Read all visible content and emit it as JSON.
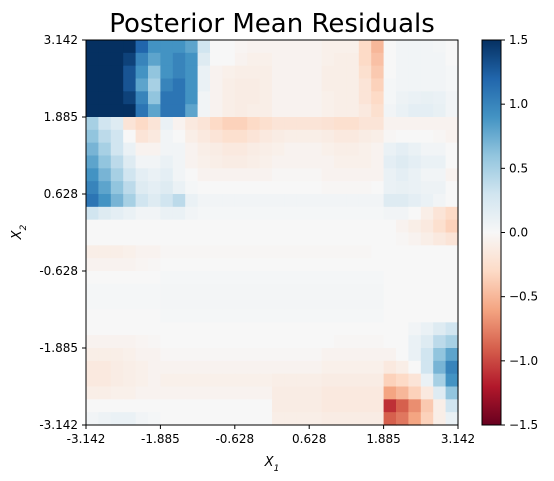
{
  "chart_data": {
    "type": "heatmap",
    "title": "Posterior Mean Residuals",
    "xlabel": "X",
    "xlabel_sub": "1",
    "ylabel": "X",
    "ylabel_sub": "2",
    "xlim": [
      -3.142,
      3.142
    ],
    "ylim": [
      -3.142,
      3.142
    ],
    "x_ticks": [
      "-3.142",
      "-1.885",
      "-0.628",
      "0.628",
      "1.885",
      "3.142"
    ],
    "y_ticks": [
      "-3.142",
      "-1.885",
      "-0.628",
      "0.628",
      "1.885",
      "3.142"
    ],
    "colormap": "RdBu",
    "vmin": -1.5,
    "vmax": 1.5,
    "colorbar_ticks": [
      "1.5",
      "1.0",
      "0.5",
      "0.0",
      "−0.5",
      "−1.0",
      "−1.5"
    ],
    "grid_size": 30,
    "rows_top_to_bottom": [
      [
        1.6,
        1.6,
        1.5,
        1.5,
        1.2,
        0.9,
        0.9,
        0.9,
        0.8,
        0.3,
        0.0,
        0.0,
        -0.03,
        -0.05,
        -0.05,
        -0.05,
        -0.05,
        -0.05,
        -0.05,
        -0.08,
        -0.08,
        -0.08,
        -0.3,
        -0.5,
        0.0,
        0.05,
        0.05,
        0.05,
        0.03,
        0.0
      ],
      [
        1.6,
        1.6,
        1.5,
        1.4,
        1.0,
        0.8,
        0.9,
        1.0,
        0.9,
        0.2,
        0.0,
        0.0,
        -0.05,
        -0.08,
        -0.08,
        -0.05,
        -0.05,
        -0.05,
        -0.05,
        -0.08,
        -0.1,
        -0.1,
        -0.3,
        -0.45,
        0.0,
        0.05,
        0.05,
        0.05,
        0.05,
        0.0
      ],
      [
        1.6,
        1.6,
        1.5,
        1.3,
        0.9,
        0.6,
        0.9,
        1.0,
        0.9,
        0.1,
        -0.05,
        -0.08,
        -0.1,
        -0.1,
        -0.1,
        -0.05,
        -0.05,
        -0.05,
        -0.05,
        -0.1,
        -0.1,
        -0.1,
        -0.25,
        -0.4,
        0.0,
        0.05,
        0.05,
        0.05,
        0.05,
        0.02
      ],
      [
        1.6,
        1.6,
        1.5,
        1.3,
        0.8,
        0.5,
        1.0,
        1.1,
        0.9,
        0.1,
        -0.05,
        -0.1,
        -0.12,
        -0.12,
        -0.1,
        -0.05,
        -0.05,
        -0.05,
        -0.05,
        -0.1,
        -0.1,
        -0.1,
        -0.2,
        -0.35,
        0.02,
        0.05,
        0.05,
        0.05,
        0.05,
        0.02
      ],
      [
        1.6,
        1.6,
        1.5,
        1.4,
        1.0,
        0.6,
        1.1,
        1.1,
        0.9,
        0.05,
        -0.05,
        -0.1,
        -0.12,
        -0.12,
        -0.1,
        -0.05,
        -0.05,
        -0.05,
        -0.05,
        -0.08,
        -0.1,
        -0.1,
        -0.2,
        -0.3,
        0.02,
        0.08,
        0.1,
        0.12,
        0.1,
        0.05
      ],
      [
        1.6,
        1.6,
        1.5,
        1.5,
        1.1,
        0.8,
        1.1,
        1.1,
        0.8,
        0.05,
        -0.05,
        -0.1,
        -0.12,
        -0.1,
        -0.1,
        -0.05,
        -0.05,
        -0.05,
        -0.05,
        -0.08,
        -0.1,
        -0.1,
        -0.15,
        -0.25,
        0.05,
        0.1,
        0.15,
        0.15,
        0.12,
        0.05
      ],
      [
        0.5,
        0.3,
        0.2,
        -0.2,
        -0.3,
        -0.2,
        0.1,
        -0.05,
        -0.15,
        -0.2,
        -0.3,
        -0.35,
        -0.35,
        -0.3,
        -0.25,
        -0.2,
        -0.2,
        -0.2,
        -0.2,
        -0.22,
        -0.25,
        -0.25,
        -0.2,
        -0.2,
        -0.05,
        -0.05,
        -0.05,
        -0.05,
        -0.05,
        -0.05
      ],
      [
        0.6,
        0.4,
        0.3,
        0.0,
        -0.2,
        -0.15,
        0.05,
        0.0,
        -0.1,
        -0.15,
        -0.2,
        -0.25,
        -0.25,
        -0.2,
        -0.15,
        -0.12,
        -0.1,
        -0.1,
        -0.1,
        -0.12,
        -0.15,
        -0.15,
        -0.12,
        -0.1,
        -0.02,
        0.0,
        0.0,
        0.0,
        -0.02,
        -0.05
      ],
      [
        0.7,
        0.5,
        0.3,
        0.1,
        -0.05,
        -0.05,
        0.05,
        0.05,
        -0.05,
        -0.1,
        -0.12,
        -0.15,
        -0.15,
        -0.12,
        -0.1,
        -0.08,
        -0.05,
        -0.05,
        -0.05,
        -0.08,
        -0.1,
        -0.1,
        -0.08,
        -0.05,
        0.1,
        0.15,
        0.1,
        0.05,
        0.05,
        0.0
      ],
      [
        0.8,
        0.6,
        0.4,
        0.2,
        0.05,
        0.05,
        0.1,
        0.05,
        -0.05,
        -0.08,
        -0.1,
        -0.12,
        -0.12,
        -0.1,
        -0.08,
        -0.05,
        -0.05,
        -0.05,
        -0.05,
        -0.05,
        -0.08,
        -0.08,
        -0.08,
        -0.05,
        0.15,
        0.2,
        0.15,
        0.1,
        0.1,
        0.0
      ],
      [
        0.9,
        0.7,
        0.5,
        0.3,
        0.15,
        0.1,
        0.15,
        0.05,
        0.0,
        -0.05,
        -0.05,
        -0.05,
        -0.05,
        -0.05,
        -0.05,
        -0.02,
        -0.02,
        -0.02,
        -0.02,
        -0.05,
        -0.05,
        -0.05,
        -0.05,
        -0.05,
        0.1,
        0.15,
        0.1,
        0.05,
        0.05,
        -0.05
      ],
      [
        1.0,
        0.8,
        0.6,
        0.4,
        0.2,
        0.15,
        0.2,
        0.1,
        0.02,
        0.0,
        0.0,
        0.0,
        0.0,
        0.0,
        0.0,
        0.0,
        0.0,
        0.0,
        0.0,
        -0.02,
        -0.02,
        -0.02,
        -0.02,
        0.0,
        0.1,
        0.12,
        0.1,
        0.08,
        0.08,
        0.0
      ],
      [
        1.1,
        0.9,
        0.7,
        0.5,
        0.3,
        0.2,
        0.3,
        0.4,
        0.1,
        0.05,
        0.05,
        0.05,
        0.05,
        0.05,
        0.05,
        0.05,
        0.05,
        0.05,
        0.05,
        0.05,
        0.05,
        0.05,
        0.05,
        0.05,
        0.2,
        0.2,
        0.15,
        0.1,
        0.05,
        0.0
      ],
      [
        0.3,
        0.2,
        0.15,
        0.1,
        0.05,
        0.05,
        0.1,
        0.1,
        0.05,
        0.02,
        0.02,
        0.02,
        0.02,
        0.02,
        0.02,
        0.02,
        0.02,
        0.02,
        0.02,
        0.02,
        0.02,
        0.02,
        0.02,
        0.02,
        0.05,
        0.05,
        0.0,
        -0.1,
        -0.2,
        -0.3
      ],
      [
        0.0,
        0.0,
        0.0,
        0.0,
        0.0,
        0.0,
        0.0,
        0.0,
        0.0,
        0.0,
        0.0,
        0.0,
        0.0,
        0.0,
        0.0,
        0.0,
        0.0,
        0.0,
        0.0,
        0.0,
        0.0,
        0.0,
        0.0,
        0.0,
        0.0,
        -0.05,
        -0.1,
        -0.15,
        -0.25,
        -0.35
      ],
      [
        0.0,
        0.0,
        0.0,
        0.0,
        0.0,
        0.0,
        0.0,
        0.0,
        0.0,
        0.0,
        0.0,
        0.0,
        0.0,
        0.0,
        0.0,
        0.0,
        0.0,
        0.0,
        0.0,
        0.0,
        0.0,
        0.0,
        0.0,
        0.0,
        0.0,
        -0.02,
        -0.05,
        -0.1,
        -0.15,
        -0.2
      ],
      [
        -0.1,
        -0.1,
        -0.1,
        -0.08,
        -0.05,
        -0.05,
        -0.02,
        -0.02,
        -0.02,
        -0.02,
        -0.02,
        -0.02,
        -0.02,
        -0.02,
        -0.02,
        -0.02,
        -0.02,
        -0.02,
        -0.02,
        -0.02,
        -0.02,
        -0.02,
        -0.02,
        0.0,
        0.0,
        0.0,
        0.0,
        0.0,
        0.0,
        0.0
      ],
      [
        -0.05,
        -0.05,
        -0.05,
        -0.05,
        -0.03,
        -0.02,
        0.0,
        0.0,
        0.0,
        0.0,
        0.0,
        0.0,
        0.0,
        0.0,
        0.0,
        0.0,
        0.0,
        0.0,
        0.0,
        0.0,
        0.0,
        0.0,
        0.0,
        0.0,
        0.0,
        0.0,
        0.0,
        0.0,
        0.0,
        0.0
      ],
      [
        0.0,
        0.0,
        0.0,
        0.0,
        0.0,
        0.0,
        0.02,
        0.02,
        0.02,
        0.02,
        0.02,
        0.02,
        0.02,
        0.02,
        0.02,
        0.02,
        0.02,
        0.02,
        0.02,
        0.02,
        0.02,
        0.02,
        0.02,
        0.02,
        0.0,
        0.0,
        0.0,
        0.0,
        0.0,
        0.0
      ],
      [
        0.02,
        0.02,
        0.02,
        0.02,
        0.02,
        0.02,
        0.03,
        0.03,
        0.03,
        0.03,
        0.03,
        0.03,
        0.03,
        0.03,
        0.03,
        0.03,
        0.03,
        0.03,
        0.03,
        0.03,
        0.03,
        0.03,
        0.03,
        0.03,
        0.0,
        0.0,
        0.0,
        0.0,
        0.0,
        0.0
      ],
      [
        0.02,
        0.02,
        0.02,
        0.02,
        0.02,
        0.02,
        0.03,
        0.03,
        0.03,
        0.03,
        0.03,
        0.03,
        0.03,
        0.03,
        0.03,
        0.03,
        0.03,
        0.03,
        0.03,
        0.03,
        0.03,
        0.03,
        0.03,
        0.03,
        0.0,
        0.0,
        0.0,
        0.0,
        0.0,
        0.0
      ],
      [
        0.0,
        0.0,
        0.0,
        0.0,
        0.0,
        0.0,
        0.02,
        0.02,
        0.02,
        0.02,
        0.02,
        0.02,
        0.02,
        0.02,
        0.02,
        0.02,
        0.02,
        0.02,
        0.02,
        0.02,
        0.02,
        0.02,
        0.02,
        0.02,
        0.0,
        0.0,
        0.0,
        0.0,
        0.0,
        0.0
      ],
      [
        0.0,
        0.0,
        0.0,
        0.0,
        0.0,
        0.0,
        0.0,
        0.0,
        0.0,
        0.0,
        0.0,
        0.0,
        0.0,
        0.0,
        0.0,
        0.0,
        0.0,
        0.0,
        0.0,
        0.0,
        0.0,
        0.0,
        0.0,
        0.0,
        0.0,
        0.0,
        0.05,
        0.1,
        0.2,
        0.3
      ],
      [
        -0.05,
        -0.05,
        -0.05,
        -0.05,
        -0.03,
        -0.02,
        0.0,
        0.0,
        0.0,
        0.0,
        0.0,
        0.0,
        0.0,
        0.0,
        0.0,
        0.0,
        0.0,
        0.0,
        0.0,
        0.0,
        -0.02,
        -0.02,
        -0.02,
        -0.02,
        0.0,
        0.0,
        0.1,
        0.2,
        0.4,
        0.5
      ],
      [
        -0.1,
        -0.1,
        -0.1,
        -0.08,
        -0.05,
        -0.05,
        -0.02,
        -0.02,
        -0.02,
        -0.02,
        -0.02,
        -0.02,
        -0.02,
        -0.02,
        -0.02,
        -0.02,
        -0.02,
        -0.02,
        -0.02,
        -0.05,
        -0.05,
        -0.05,
        -0.05,
        -0.05,
        -0.05,
        0.0,
        0.1,
        0.3,
        0.6,
        0.8
      ],
      [
        -0.15,
        -0.15,
        -0.12,
        -0.1,
        -0.08,
        -0.05,
        -0.05,
        -0.05,
        -0.05,
        -0.05,
        -0.05,
        -0.05,
        -0.05,
        -0.05,
        -0.05,
        -0.05,
        -0.05,
        -0.05,
        -0.05,
        -0.08,
        -0.08,
        -0.08,
        -0.08,
        -0.08,
        -0.15,
        -0.1,
        0.0,
        0.3,
        0.7,
        1.0
      ],
      [
        -0.15,
        -0.15,
        -0.12,
        -0.1,
        -0.08,
        -0.05,
        -0.08,
        -0.08,
        -0.08,
        -0.08,
        -0.08,
        -0.08,
        -0.08,
        -0.08,
        -0.08,
        -0.1,
        -0.1,
        -0.1,
        -0.1,
        -0.12,
        -0.12,
        -0.12,
        -0.12,
        -0.12,
        -0.35,
        -0.3,
        -0.2,
        0.1,
        0.5,
        0.9
      ],
      [
        -0.1,
        -0.1,
        -0.08,
        -0.08,
        -0.05,
        -0.05,
        -0.05,
        -0.05,
        -0.05,
        -0.05,
        -0.05,
        -0.05,
        -0.05,
        -0.05,
        -0.05,
        -0.12,
        -0.12,
        -0.12,
        -0.12,
        -0.15,
        -0.15,
        -0.15,
        -0.15,
        -0.15,
        -0.6,
        -0.5,
        -0.35,
        -0.15,
        0.2,
        0.6
      ],
      [
        0.0,
        0.0,
        0.0,
        0.0,
        0.0,
        0.0,
        0.0,
        0.0,
        0.0,
        0.0,
        0.0,
        0.0,
        0.0,
        0.0,
        0.0,
        -0.12,
        -0.12,
        -0.12,
        -0.12,
        -0.15,
        -0.15,
        -0.15,
        -0.15,
        -0.15,
        -1.1,
        -0.9,
        -0.7,
        -0.4,
        -0.1,
        0.3
      ],
      [
        0.05,
        0.08,
        0.1,
        0.1,
        0.05,
        0.02,
        0.0,
        0.0,
        0.0,
        0.0,
        0.0,
        0.0,
        0.0,
        0.0,
        0.0,
        -0.1,
        -0.1,
        -0.1,
        -0.1,
        -0.12,
        -0.12,
        -0.12,
        -0.12,
        -0.12,
        -0.9,
        -0.8,
        -0.6,
        -0.35,
        -0.1,
        0.1
      ]
    ]
  }
}
